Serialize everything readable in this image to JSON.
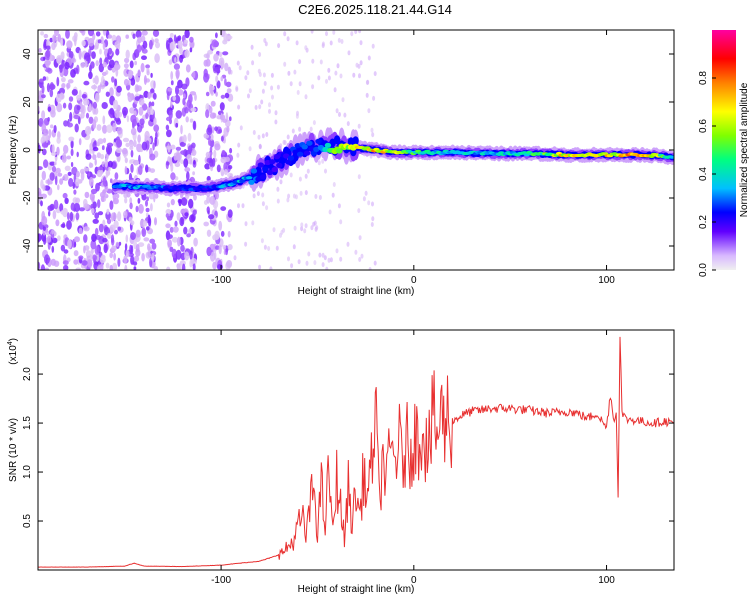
{
  "title": "C2E6.2025.118.21.44.G14",
  "chart_data": [
    {
      "type": "heatmap",
      "xlabel": "Height of straight line (km)",
      "ylabel": "Frequency (Hz)",
      "xlim": [
        -195,
        135
      ],
      "ylim": [
        -50,
        50
      ],
      "xticks": [
        -100,
        0,
        100
      ],
      "xtick_labels": [
        "-100",
        "0",
        "100"
      ],
      "yticks": [
        -40,
        -20,
        0,
        20,
        40
      ],
      "ytick_labels": [
        "-40",
        "-20",
        "0",
        "20",
        "40"
      ],
      "colorbar": {
        "label": "Normalized spectral amplitude",
        "range": [
          0,
          1
        ],
        "ticks": [
          0.0,
          0.2,
          0.4,
          0.6,
          0.8
        ],
        "tick_labels": [
          "0.0",
          "0.2",
          "0.4",
          "0.6",
          "0.8"
        ],
        "colors": [
          "#f0f0f0",
          "#c080ff",
          "#6000ff",
          "#0000ff",
          "#00c0ff",
          "#00ff80",
          "#80ff00",
          "#ffff00",
          "#ff8000",
          "#ff0000",
          "#ff00a0"
        ]
      },
      "ridge": {
        "x": [
          -155,
          -140,
          -125,
          -110,
          -100,
          -90,
          -80,
          -70,
          -60,
          -50,
          -40,
          -30,
          -20,
          -10,
          0,
          20,
          40,
          60,
          80,
          100,
          120,
          135
        ],
        "y": [
          -15,
          -15.5,
          -16,
          -16,
          -15,
          -13,
          -9,
          -5,
          0,
          2,
          2,
          1,
          0,
          -1,
          -1,
          -1,
          -1.5,
          -1.5,
          -2,
          -2,
          -2,
          -3
        ],
        "amplitude": [
          0.35,
          0.4,
          0.3,
          0.3,
          0.35,
          0.4,
          0.3,
          0.25,
          0.3,
          0.3,
          0.55,
          0.65,
          0.75,
          0.6,
          0.5,
          0.4,
          0.4,
          0.45,
          0.7,
          0.65,
          0.8,
          0.35
        ]
      }
    },
    {
      "type": "line",
      "xlabel": "Height of straight line (km)",
      "ylabel": "SNR (10 * v/v)",
      "scale_label": "(x10",
      "scale_exp": "4",
      "scale_close": ")",
      "xlim": [
        -195,
        135
      ],
      "ylim": [
        0,
        24500
      ],
      "xticks": [
        -100,
        0,
        100
      ],
      "xtick_labels": [
        "-100",
        "0",
        "100"
      ],
      "yticks": [
        5000,
        10000,
        15000,
        20000
      ],
      "ytick_labels": [
        "0.5",
        "1.0",
        "1.5",
        "2.0"
      ],
      "color": "#e83030",
      "series": [
        {
          "x": [
            -195,
            -170,
            -150,
            -145,
            -140,
            -120,
            -100,
            -90,
            -80,
            -72,
            -68,
            -64,
            -62,
            -60,
            -58,
            -56,
            -54,
            -52,
            -50,
            -48,
            -46,
            -44,
            -42,
            -40,
            -38,
            -36,
            -34,
            -32,
            -30,
            -28,
            -26,
            -24,
            -22,
            -20,
            -18,
            -16,
            -14,
            -12,
            -10,
            -8,
            -6,
            -4,
            -2,
            0,
            2,
            4,
            6,
            8,
            10,
            12,
            14,
            16,
            18,
            20,
            25,
            30,
            35,
            40,
            50,
            60,
            70,
            80,
            85,
            90,
            95,
            100,
            102,
            104,
            105,
            106,
            107,
            108,
            110,
            115,
            120,
            125,
            130,
            135
          ],
          "y": [
            300,
            300,
            400,
            700,
            400,
            350,
            500,
            700,
            900,
            1400,
            1800,
            2600,
            3200,
            4500,
            5500,
            3500,
            6000,
            9000,
            4000,
            8500,
            4500,
            10500,
            3500,
            9500,
            6500,
            3000,
            8500,
            4800,
            8000,
            5500,
            10000,
            7500,
            10500,
            16500,
            7000,
            11500,
            9000,
            12500,
            11000,
            13500,
            10500,
            13000,
            12000,
            14000,
            13000,
            15000,
            13500,
            12500,
            15500,
            14000,
            15500,
            15000,
            16000,
            15200,
            15800,
            16200,
            16300,
            16500,
            16500,
            16300,
            16000,
            16200,
            16000,
            15500,
            16000,
            14500,
            18000,
            15000,
            16500,
            7500,
            24500,
            16000,
            15400,
            15300,
            15100,
            15000,
            15200,
            15000
          ]
        }
      ]
    }
  ]
}
